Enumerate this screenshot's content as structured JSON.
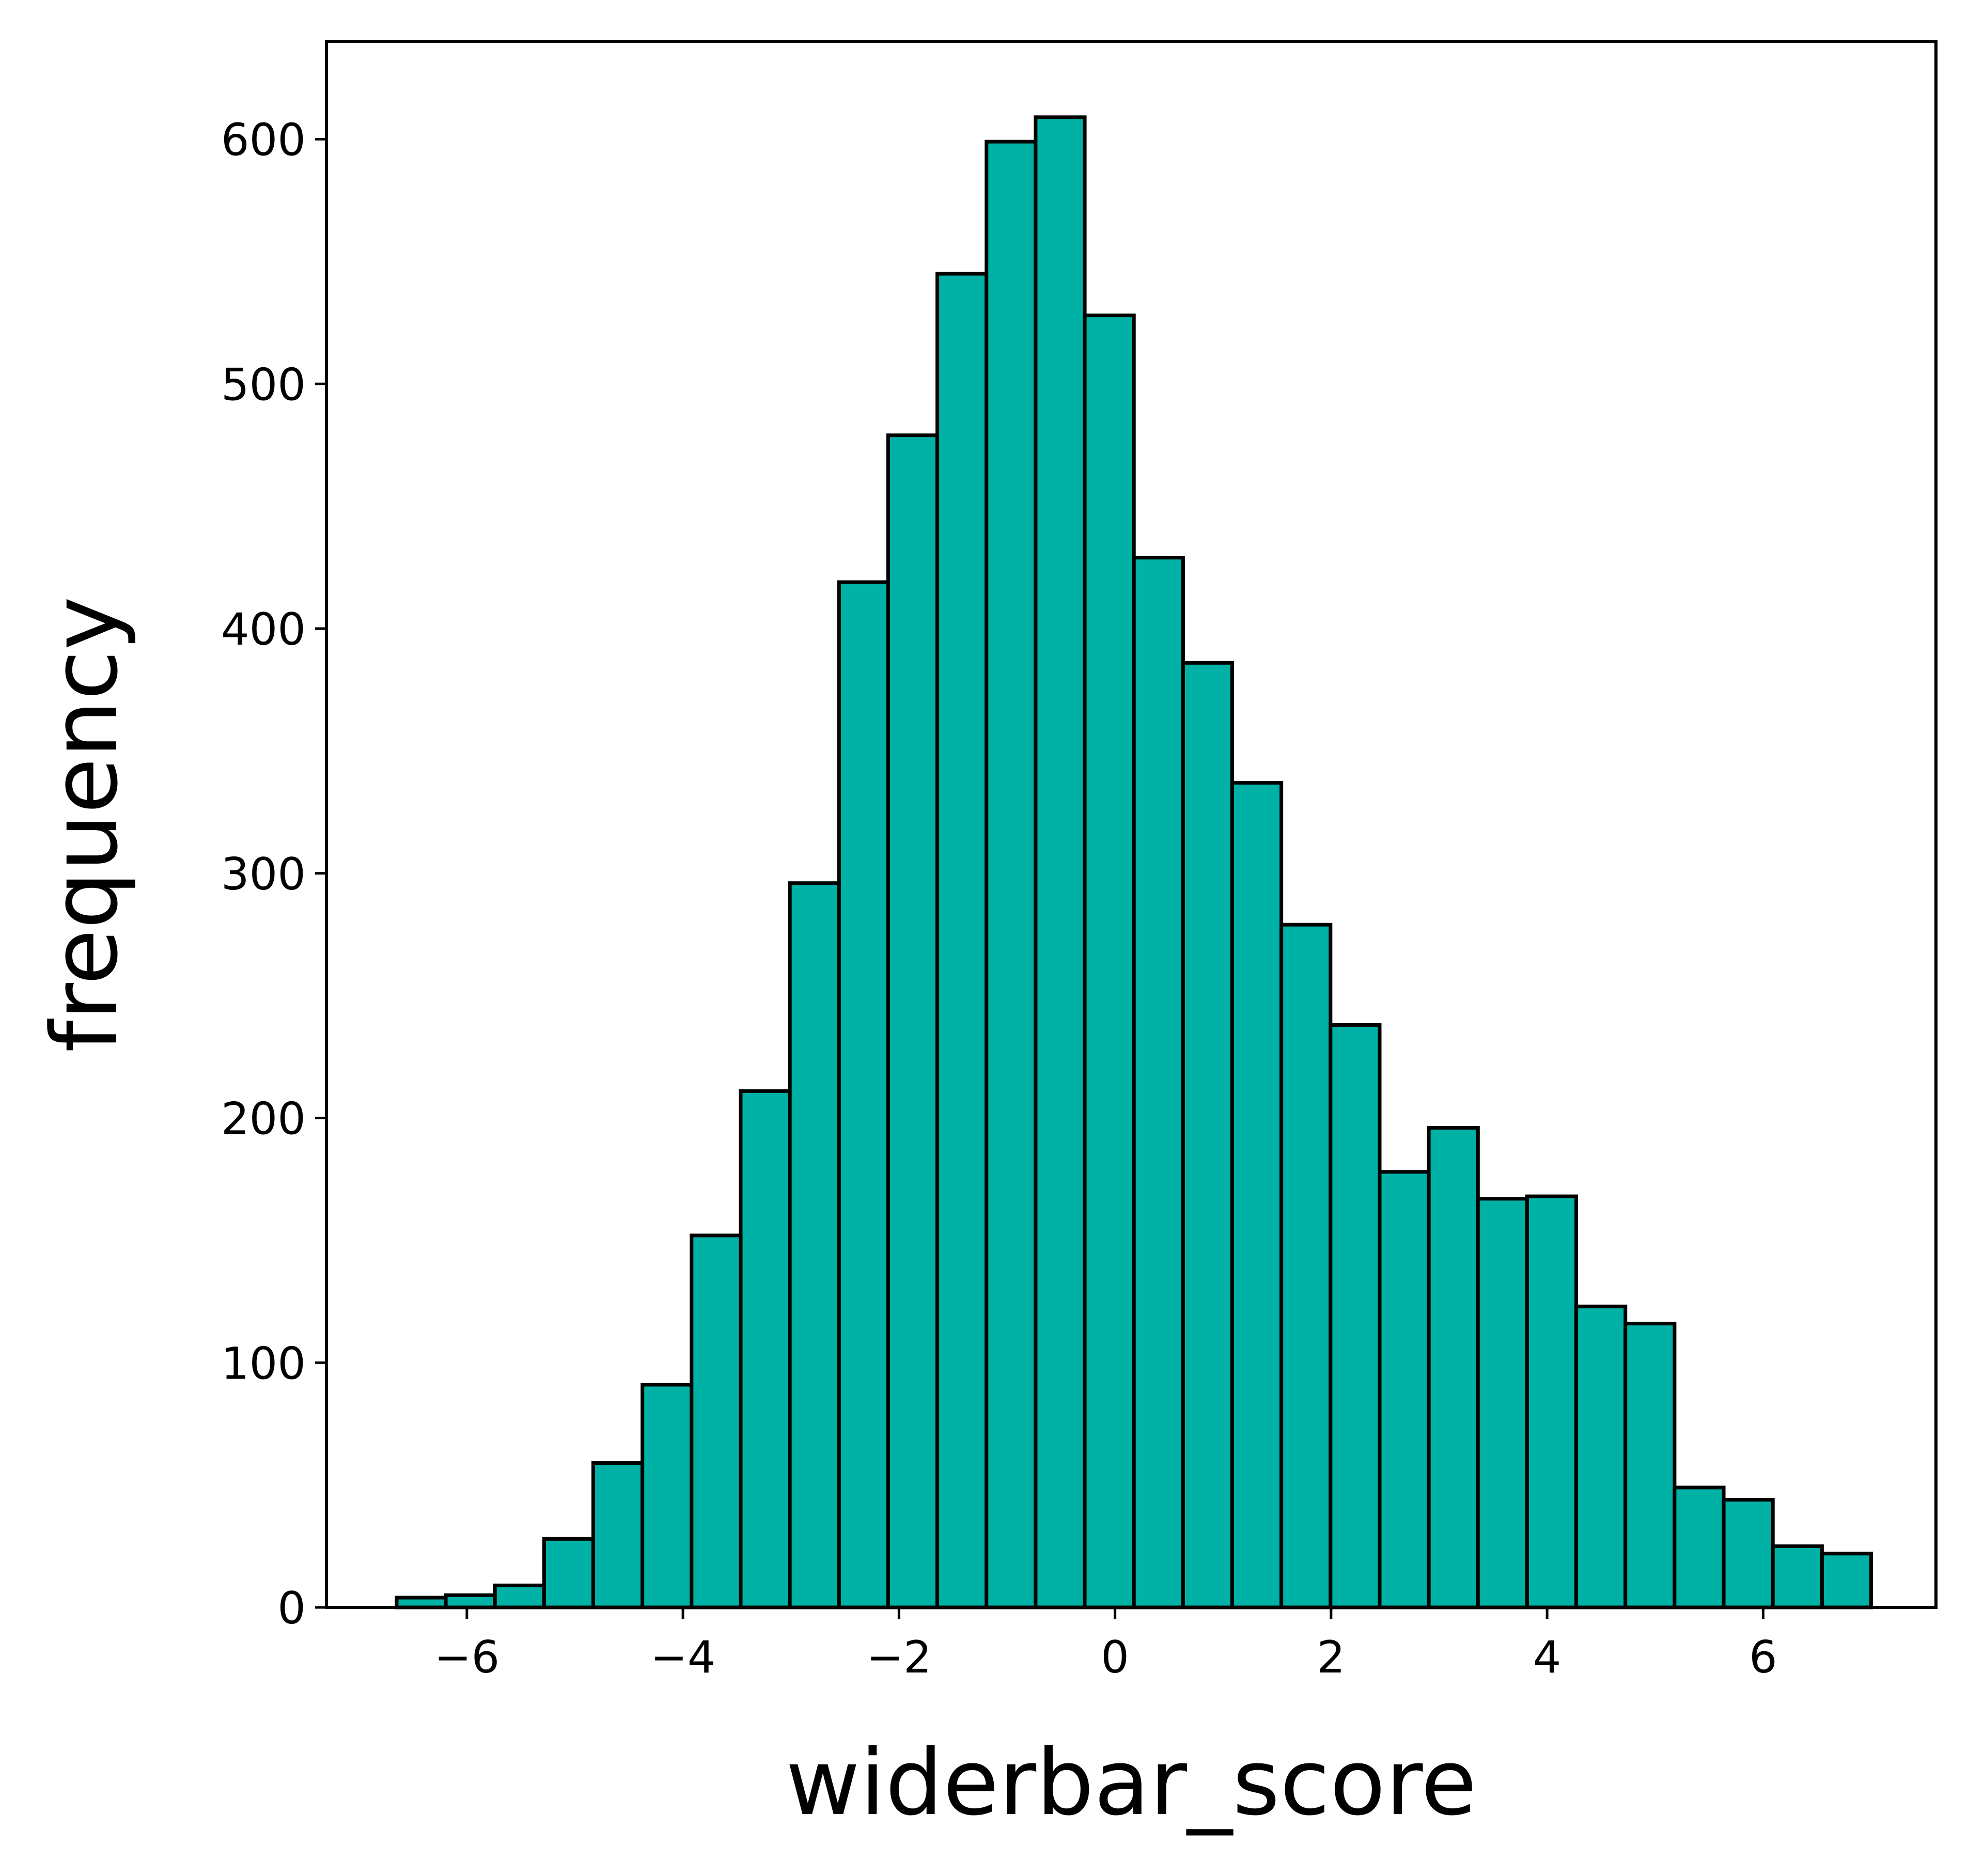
{
  "chart_data": {
    "type": "bar",
    "subtype": "histogram",
    "title": "",
    "xlabel": "widerbar_score",
    "ylabel": "frequency",
    "xlim": [
      -7.3,
      7.6
    ],
    "ylim": [
      0,
      640
    ],
    "grid": false,
    "bar_color": "#00B2A6",
    "edge_color": "#000000",
    "x_ticks": [
      {
        "value": -6,
        "label": "−6"
      },
      {
        "value": -4,
        "label": "−4"
      },
      {
        "value": -2,
        "label": "−2"
      },
      {
        "value": 0,
        "label": "0"
      },
      {
        "value": 2,
        "label": "2"
      },
      {
        "value": 4,
        "label": "4"
      },
      {
        "value": 6,
        "label": "6"
      }
    ],
    "y_ticks": [
      {
        "value": 0,
        "label": "0"
      },
      {
        "value": 100,
        "label": "100"
      },
      {
        "value": 200,
        "label": "200"
      },
      {
        "value": 300,
        "label": "300"
      },
      {
        "value": 400,
        "label": "400"
      },
      {
        "value": 500,
        "label": "500"
      },
      {
        "value": 600,
        "label": "600"
      }
    ],
    "bin_edges": [
      -6.65,
      -6.195,
      -5.74,
      -5.285,
      -4.83,
      -4.375,
      -3.92,
      -3.465,
      -3.01,
      -2.555,
      -2.1,
      -1.645,
      -1.19,
      -0.735,
      -0.28,
      0.175,
      0.63,
      1.085,
      1.54,
      1.995,
      2.45,
      2.905,
      3.36,
      3.815,
      4.27,
      4.725,
      5.18,
      5.635,
      6.09,
      6.545,
      7.0
    ],
    "values": [
      4,
      5,
      9,
      28,
      59,
      91,
      152,
      211,
      296,
      419,
      479,
      545,
      599,
      609,
      528,
      429,
      386,
      337,
      279,
      238,
      178,
      196,
      167,
      168,
      123,
      116,
      49,
      44,
      25,
      22
    ]
  }
}
